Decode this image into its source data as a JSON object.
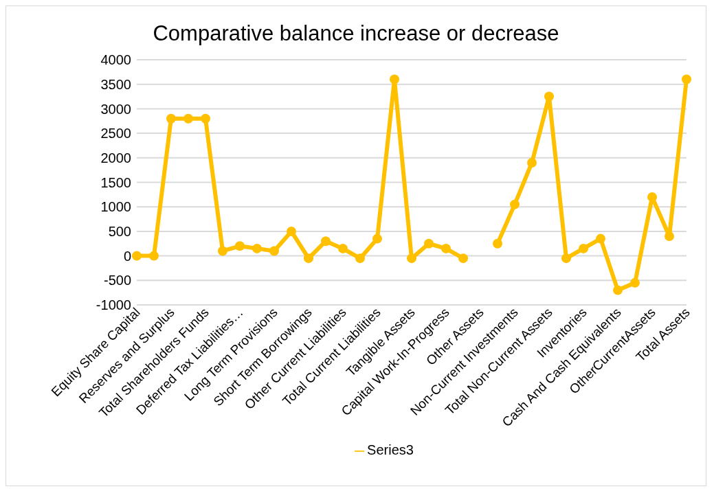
{
  "chart_data": {
    "type": "line",
    "title": "Comparative balance increase or decrease",
    "categories": [
      "Equity Share Capital",
      null,
      "Reserves and Surplus",
      null,
      "Total Shareholders Funds",
      null,
      "Deferred Tax Liabilities…",
      null,
      "Long Term Provisions",
      null,
      "Short Term Borrowings",
      null,
      "Other Current Liabilities",
      null,
      "Total Current Liabilities",
      null,
      "Tangible Assets",
      null,
      "Capital Work-In-Progress",
      null,
      "Other Assets",
      null,
      "Non-Current Investments",
      null,
      "Total Non-Current Assets",
      null,
      "Inventories",
      null,
      "Cash And Cash Equivalents",
      null,
      "OtherCurrentAssets",
      null,
      "Total Assets"
    ],
    "series": [
      {
        "name": "Series3",
        "color": "#ffc000",
        "values": [
          0,
          0,
          2800,
          2800,
          2800,
          100,
          200,
          150,
          100,
          500,
          -50,
          300,
          150,
          -50,
          350,
          3600,
          -50,
          250,
          150,
          -50,
          null,
          250,
          1050,
          1900,
          3250,
          -50,
          150,
          350,
          -700,
          -550,
          1200,
          400,
          3600
        ]
      }
    ],
    "ylim": [
      -1000,
      4000
    ],
    "yticks": [
      -1000,
      -500,
      0,
      500,
      1000,
      1500,
      2000,
      2500,
      3000,
      3500,
      4000
    ],
    "grid": "y",
    "legend": "bottom",
    "marker": "circle",
    "line_style": "solid"
  }
}
